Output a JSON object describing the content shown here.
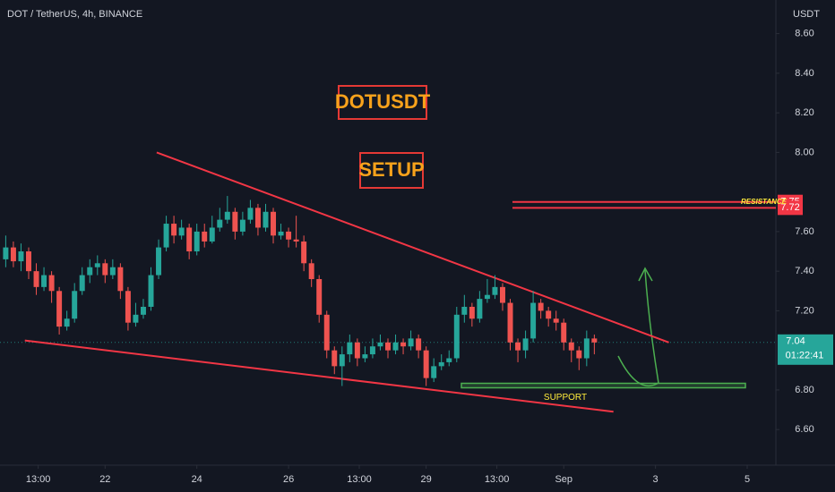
{
  "chart_data": {
    "type": "candlestick",
    "title": "DOT / TetherUS, 4h, BINANCE",
    "axis_unit": "USDT",
    "x": [
      -4,
      0,
      4,
      8,
      12,
      16,
      20,
      24,
      28,
      32,
      36,
      40,
      44,
      48,
      52,
      56,
      60,
      64,
      68,
      72,
      76,
      80,
      84,
      88,
      92,
      96,
      100,
      104,
      108,
      112,
      116,
      120,
      124,
      128,
      132,
      136,
      140,
      144,
      148,
      152,
      156,
      160,
      164,
      168,
      172,
      176,
      180,
      184,
      188,
      192,
      196,
      200,
      204,
      208,
      212,
      216,
      220,
      224,
      228,
      232,
      236,
      240,
      244,
      248,
      252,
      256,
      260,
      264,
      268,
      272,
      276,
      280,
      284,
      288,
      292,
      296,
      300,
      304
    ],
    "open": [
      7.46,
      7.52,
      7.45,
      7.5,
      7.4,
      7.32,
      7.38,
      7.3,
      7.12,
      7.16,
      7.3,
      7.38,
      7.42,
      7.44,
      7.38,
      7.42,
      7.3,
      7.14,
      7.18,
      7.22,
      7.38,
      7.52,
      7.64,
      7.58,
      7.62,
      7.5,
      7.6,
      7.55,
      7.62,
      7.66,
      7.7,
      7.6,
      7.66,
      7.72,
      7.62,
      7.7,
      7.58,
      7.6,
      7.56,
      7.55,
      7.44,
      7.36,
      7.18,
      7.0,
      6.92,
      6.98,
      7.04,
      6.96,
      6.98,
      7.02,
      7.04,
      7.0,
      7.04,
      7.02,
      7.06,
      7.0,
      6.86,
      6.92,
      6.94,
      6.96,
      7.18,
      7.22,
      7.16,
      7.26,
      7.28,
      7.32,
      7.24,
      7.04,
      7.0,
      7.06,
      7.24,
      7.2,
      7.16,
      7.14,
      7.04,
      7.0,
      6.96,
      7.06
    ],
    "high": [
      7.58,
      7.55,
      7.54,
      7.52,
      7.44,
      7.42,
      7.4,
      7.32,
      7.2,
      7.34,
      7.42,
      7.46,
      7.48,
      7.46,
      7.46,
      7.44,
      7.32,
      7.24,
      7.26,
      7.42,
      7.56,
      7.68,
      7.68,
      7.66,
      7.64,
      7.64,
      7.64,
      7.68,
      7.72,
      7.78,
      7.72,
      7.7,
      7.76,
      7.74,
      7.74,
      7.72,
      7.64,
      7.62,
      7.68,
      7.58,
      7.46,
      7.38,
      7.2,
      7.02,
      7.02,
      7.08,
      7.06,
      7.02,
      7.06,
      7.08,
      7.06,
      7.08,
      7.06,
      7.1,
      7.08,
      7.02,
      6.96,
      6.98,
      7.0,
      7.22,
      7.28,
      7.24,
      7.3,
      7.36,
      7.38,
      7.34,
      7.26,
      7.06,
      7.1,
      7.3,
      7.26,
      7.22,
      7.2,
      7.16,
      7.06,
      7.02,
      7.1,
      7.08
    ],
    "low": [
      7.42,
      7.42,
      7.4,
      7.36,
      7.28,
      7.3,
      7.24,
      7.08,
      7.1,
      7.14,
      7.28,
      7.34,
      7.38,
      7.34,
      7.36,
      7.26,
      7.1,
      7.12,
      7.16,
      7.2,
      7.36,
      7.5,
      7.54,
      7.56,
      7.46,
      7.48,
      7.52,
      7.54,
      7.6,
      7.64,
      7.56,
      7.58,
      7.64,
      7.58,
      7.6,
      7.54,
      7.56,
      7.52,
      7.52,
      7.4,
      7.32,
      7.14,
      6.96,
      6.88,
      6.82,
      6.94,
      6.92,
      6.94,
      6.96,
      7.0,
      6.96,
      6.98,
      6.98,
      7.0,
      6.96,
      6.82,
      6.84,
      6.9,
      6.92,
      6.94,
      7.14,
      7.12,
      7.14,
      7.24,
      7.26,
      7.2,
      7.0,
      6.94,
      6.96,
      7.04,
      7.16,
      7.12,
      7.1,
      7.0,
      6.94,
      6.9,
      6.92,
      6.98
    ],
    "close": [
      7.52,
      7.45,
      7.5,
      7.4,
      7.32,
      7.38,
      7.3,
      7.12,
      7.16,
      7.3,
      7.38,
      7.42,
      7.44,
      7.38,
      7.42,
      7.3,
      7.14,
      7.18,
      7.22,
      7.38,
      7.52,
      7.64,
      7.58,
      7.62,
      7.5,
      7.6,
      7.55,
      7.62,
      7.66,
      7.7,
      7.6,
      7.66,
      7.72,
      7.62,
      7.7,
      7.58,
      7.6,
      7.56,
      7.55,
      7.44,
      7.36,
      7.18,
      7.0,
      6.92,
      6.98,
      7.04,
      6.96,
      6.98,
      7.02,
      7.04,
      7.0,
      7.04,
      7.02,
      7.06,
      7.0,
      6.86,
      6.92,
      6.94,
      6.96,
      7.18,
      7.22,
      7.16,
      7.26,
      7.28,
      7.32,
      7.24,
      7.04,
      7.0,
      7.06,
      7.24,
      7.2,
      7.16,
      7.14,
      7.04,
      7.0,
      6.96,
      7.06,
      7.04
    ],
    "up_color": "#26a69a",
    "down_color": "#ef5350",
    "xlim": [
      -7,
      399
    ],
    "ylim": [
      6.42,
      8.77
    ],
    "xticks": [
      {
        "value": 13,
        "label": "13:00"
      },
      {
        "value": 48,
        "label": "22"
      },
      {
        "value": 96,
        "label": "24"
      },
      {
        "value": 144,
        "label": "26"
      },
      {
        "value": 181,
        "label": "13:00"
      },
      {
        "value": 216,
        "label": "29"
      },
      {
        "value": 253,
        "label": "13:00"
      },
      {
        "value": 288,
        "label": "Sep"
      },
      {
        "value": 336,
        "label": "3"
      },
      {
        "value": 384,
        "label": "5"
      }
    ],
    "yticks": [
      {
        "value": 8.6,
        "label": "8.60"
      },
      {
        "value": 8.4,
        "label": "8.40"
      },
      {
        "value": 8.2,
        "label": "8.20"
      },
      {
        "value": 8.0,
        "label": "8.00"
      },
      {
        "value": 7.6,
        "label": "7.60"
      },
      {
        "value": 7.4,
        "label": "7.40"
      },
      {
        "value": 7.2,
        "label": "7.20"
      },
      {
        "value": 6.8,
        "label": "6.80"
      },
      {
        "value": 6.6,
        "label": "6.60"
      }
    ],
    "trendlines": [
      {
        "x": [
          75,
          343
        ],
        "y": [
          8.0,
          7.04
        ]
      },
      {
        "x": [
          6,
          314
        ],
        "y": [
          7.05,
          6.69
        ]
      }
    ],
    "trendline_color": "#f23645",
    "resistance_label": "RESISTANCE",
    "resistance_levels": [
      7.75,
      7.72
    ],
    "support_label": "SUPPORT",
    "support_level": 6.82,
    "last_price": 7.04,
    "countdown": "01:22:41",
    "boxes": [
      "DOTUSDT",
      "SETUP"
    ]
  }
}
